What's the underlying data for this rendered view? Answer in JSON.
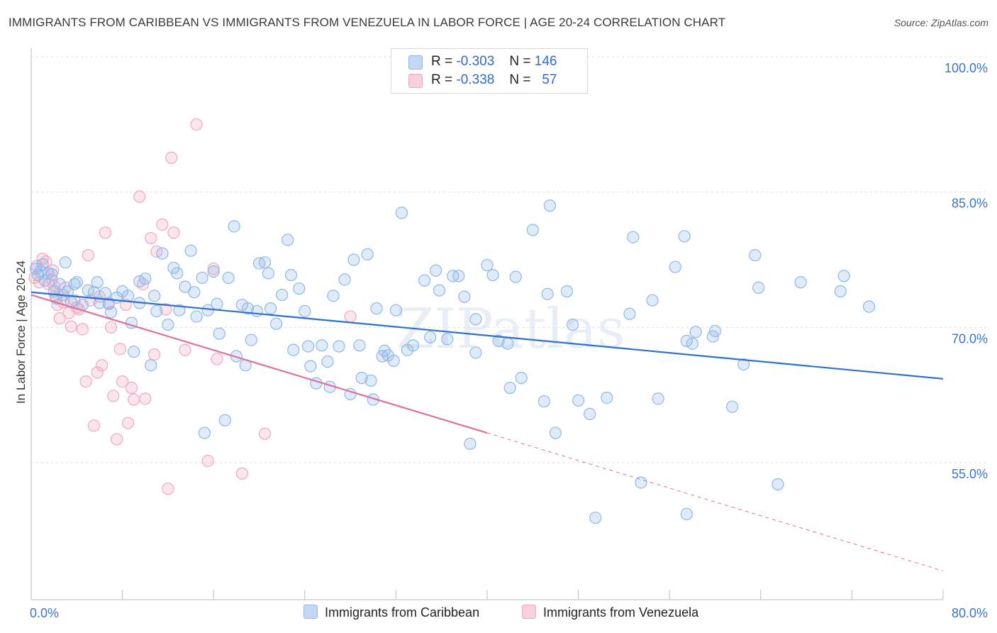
{
  "title": "IMMIGRANTS FROM CARIBBEAN VS IMMIGRANTS FROM VENEZUELA IN LABOR FORCE | AGE 20-24 CORRELATION CHART",
  "source": "Source: ZipAtlas.com",
  "watermark": "ZIPatlas",
  "legend": {
    "r_label": "R =",
    "n_label": "N =",
    "rows": [
      {
        "r": "-0.303",
        "n": "146"
      },
      {
        "r": "-0.338",
        "n": "57"
      }
    ]
  },
  "chart_data": {
    "type": "scatter",
    "title": "IMMIGRANTS FROM CARIBBEAN VS IMMIGRANTS FROM VENEZUELA IN LABOR FORCE | AGE 20-24 CORRELATION CHART",
    "xlabel": "",
    "ylabel": "In Labor Force | Age 20-24",
    "xlim": [
      0,
      80
    ],
    "ylim": [
      41.5,
      102
    ],
    "x_tick_labels": [
      "0.0%",
      "80.0%"
    ],
    "y_ticks": [
      55,
      70,
      85,
      100
    ],
    "y_tick_labels": [
      "55.0%",
      "70.0%",
      "85.0%",
      "100.0%"
    ],
    "grid": true,
    "colors": {
      "caribbean": "#8fb8ea",
      "venezuela": "#f2a7c0",
      "caribbean_line": "#2f6fd0",
      "venezuela_line": "#e0709a"
    },
    "series": [
      {
        "name": "Immigrants from Caribbean",
        "r": -0.303,
        "n": 146,
        "trend": {
          "x0": 0,
          "y0": 73.9,
          "x1": 80,
          "y1": 64.3
        },
        "points": [
          [
            0.4,
            76.5
          ],
          [
            0.6,
            75.8
          ],
          [
            0.8,
            76.2
          ],
          [
            1.0,
            77.0
          ],
          [
            1.2,
            75.2
          ],
          [
            1.5,
            76.0
          ],
          [
            1.8,
            75.9
          ],
          [
            2.0,
            74.0
          ],
          [
            2.2,
            73.2
          ],
          [
            2.5,
            74.8
          ],
          [
            2.8,
            73.6
          ],
          [
            3.0,
            77.2
          ],
          [
            3.2,
            74.0
          ],
          [
            3.5,
            72.8
          ],
          [
            3.8,
            74.8
          ],
          [
            4.0,
            75.0
          ],
          [
            4.5,
            72.5
          ],
          [
            5.0,
            74.1
          ],
          [
            5.5,
            73.9
          ],
          [
            5.8,
            75.0
          ],
          [
            6.0,
            72.7
          ],
          [
            6.5,
            73.8
          ],
          [
            6.8,
            72.6
          ],
          [
            7.0,
            71.7
          ],
          [
            7.5,
            73.3
          ],
          [
            8.0,
            74.0
          ],
          [
            8.5,
            73.5
          ],
          [
            8.8,
            70.5
          ],
          [
            9.0,
            67.3
          ],
          [
            9.5,
            72.7
          ],
          [
            9.5,
            75.1
          ],
          [
            10.0,
            75.4
          ],
          [
            10.5,
            65.8
          ],
          [
            10.8,
            73.5
          ],
          [
            11.0,
            71.8
          ],
          [
            11.5,
            78.2
          ],
          [
            12.0,
            70.3
          ],
          [
            12.5,
            76.6
          ],
          [
            12.8,
            76.0
          ],
          [
            13.0,
            71.9
          ],
          [
            13.5,
            74.5
          ],
          [
            14.0,
            78.5
          ],
          [
            14.3,
            73.9
          ],
          [
            14.5,
            71.2
          ],
          [
            15.0,
            75.5
          ],
          [
            15.2,
            58.3
          ],
          [
            15.5,
            71.9
          ],
          [
            16.0,
            76.2
          ],
          [
            16.3,
            72.6
          ],
          [
            16.5,
            69.3
          ],
          [
            17.0,
            59.7
          ],
          [
            17.3,
            75.5
          ],
          [
            17.8,
            81.2
          ],
          [
            18.0,
            66.8
          ],
          [
            18.5,
            72.5
          ],
          [
            18.8,
            65.8
          ],
          [
            19.0,
            72.1
          ],
          [
            19.3,
            68.6
          ],
          [
            19.8,
            71.8
          ],
          [
            20.0,
            77.1
          ],
          [
            20.5,
            77.2
          ],
          [
            20.8,
            76.0
          ],
          [
            21.0,
            72.1
          ],
          [
            21.5,
            70.4
          ],
          [
            22.0,
            73.6
          ],
          [
            22.5,
            79.7
          ],
          [
            22.8,
            75.8
          ],
          [
            23.0,
            67.5
          ],
          [
            23.5,
            74.3
          ],
          [
            24.0,
            71.8
          ],
          [
            24.3,
            67.9
          ],
          [
            24.5,
            65.7
          ],
          [
            25.0,
            63.8
          ],
          [
            25.5,
            68.0
          ],
          [
            26.0,
            66.2
          ],
          [
            26.2,
            63.4
          ],
          [
            26.5,
            73.5
          ],
          [
            27.0,
            67.9
          ],
          [
            27.5,
            75.3
          ],
          [
            28.0,
            62.6
          ],
          [
            28.3,
            77.5
          ],
          [
            28.8,
            68.0
          ],
          [
            29.0,
            64.4
          ],
          [
            29.5,
            78.1
          ],
          [
            29.8,
            64.1
          ],
          [
            30.0,
            62.0
          ],
          [
            30.3,
            72.1
          ],
          [
            30.8,
            66.8
          ],
          [
            31.0,
            67.4
          ],
          [
            31.3,
            66.9
          ],
          [
            31.8,
            66.3
          ],
          [
            32.0,
            71.9
          ],
          [
            32.5,
            82.7
          ],
          [
            33.0,
            67.5
          ],
          [
            33.5,
            68.0
          ],
          [
            34.5,
            75.2
          ],
          [
            35.0,
            68.9
          ],
          [
            35.5,
            76.3
          ],
          [
            35.8,
            74.1
          ],
          [
            36.5,
            68.7
          ],
          [
            37.0,
            75.7
          ],
          [
            37.5,
            75.7
          ],
          [
            38.0,
            73.4
          ],
          [
            38.5,
            57.1
          ],
          [
            39.0,
            70.9
          ],
          [
            39.0,
            67.2
          ],
          [
            40.0,
            76.9
          ],
          [
            40.5,
            75.8
          ],
          [
            41.0,
            68.5
          ],
          [
            41.8,
            68.2
          ],
          [
            42.0,
            63.3
          ],
          [
            42.5,
            75.6
          ],
          [
            43.0,
            64.4
          ],
          [
            44.0,
            80.8
          ],
          [
            45.0,
            61.8
          ],
          [
            45.5,
            83.5
          ],
          [
            45.3,
            73.7
          ],
          [
            46.0,
            58.3
          ],
          [
            47.0,
            74.0
          ],
          [
            47.5,
            70.3
          ],
          [
            48.0,
            61.9
          ],
          [
            49.0,
            60.4
          ],
          [
            49.5,
            48.9
          ],
          [
            50.5,
            62.2
          ],
          [
            52.5,
            71.5
          ],
          [
            52.8,
            80.0
          ],
          [
            53.5,
            52.8
          ],
          [
            54.5,
            73.0
          ],
          [
            55.0,
            62.1
          ],
          [
            56.5,
            76.7
          ],
          [
            57.3,
            80.1
          ],
          [
            57.5,
            49.3
          ],
          [
            57.5,
            68.5
          ],
          [
            58.0,
            68.2
          ],
          [
            58.3,
            69.5
          ],
          [
            60.0,
            69.6
          ],
          [
            61.5,
            61.2
          ],
          [
            62.5,
            65.9
          ],
          [
            63.5,
            78.0
          ],
          [
            63.8,
            74.4
          ],
          [
            65.5,
            52.6
          ],
          [
            67.5,
            75.0
          ],
          [
            71.0,
            74.0
          ],
          [
            71.3,
            75.7
          ],
          [
            73.5,
            72.3
          ],
          [
            59.8,
            69.0
          ]
        ]
      },
      {
        "name": "Immigrants from Venezuela",
        "r": -0.338,
        "n": 57,
        "trend": {
          "x0": 0,
          "y0": 73.6,
          "x1": 40,
          "y1": 58.3
        },
        "dashed_extension": {
          "x0": 40,
          "y0": 58.3,
          "x1": 80,
          "y1": 43.0
        },
        "points": [
          [
            0.3,
            75.5
          ],
          [
            0.5,
            76.8
          ],
          [
            0.7,
            75.0
          ],
          [
            1.0,
            77.6
          ],
          [
            1.3,
            77.3
          ],
          [
            1.5,
            74.8
          ],
          [
            1.8,
            75.3
          ],
          [
            1.9,
            76.3
          ],
          [
            2.0,
            74.6
          ],
          [
            2.1,
            73.5
          ],
          [
            2.3,
            72.5
          ],
          [
            2.5,
            71.0
          ],
          [
            2.8,
            72.8
          ],
          [
            3.0,
            74.4
          ],
          [
            3.3,
            71.6
          ],
          [
            3.5,
            70.1
          ],
          [
            3.8,
            73.0
          ],
          [
            4.0,
            72.2
          ],
          [
            4.2,
            72.0
          ],
          [
            4.5,
            69.8
          ],
          [
            4.8,
            64.0
          ],
          [
            5.0,
            78.0
          ],
          [
            5.2,
            73.0
          ],
          [
            5.5,
            59.1
          ],
          [
            5.8,
            65.0
          ],
          [
            6.0,
            73.4
          ],
          [
            6.2,
            65.8
          ],
          [
            6.5,
            80.5
          ],
          [
            6.8,
            72.7
          ],
          [
            7.0,
            70.0
          ],
          [
            7.2,
            62.4
          ],
          [
            7.5,
            57.6
          ],
          [
            7.8,
            67.6
          ],
          [
            8.0,
            64.0
          ],
          [
            8.3,
            72.5
          ],
          [
            8.5,
            59.4
          ],
          [
            8.8,
            63.3
          ],
          [
            9.0,
            62.0
          ],
          [
            9.5,
            84.5
          ],
          [
            9.8,
            74.8
          ],
          [
            10.0,
            62.1
          ],
          [
            10.5,
            79.9
          ],
          [
            10.8,
            67.0
          ],
          [
            11.0,
            78.4
          ],
          [
            11.5,
            81.4
          ],
          [
            11.8,
            72.0
          ],
          [
            12.0,
            52.1
          ],
          [
            12.3,
            88.8
          ],
          [
            12.5,
            80.5
          ],
          [
            13.5,
            67.5
          ],
          [
            14.5,
            92.5
          ],
          [
            15.5,
            55.2
          ],
          [
            16.0,
            76.5
          ],
          [
            16.3,
            66.5
          ],
          [
            18.5,
            53.8
          ],
          [
            20.5,
            58.2
          ],
          [
            28.0,
            71.2
          ]
        ]
      }
    ]
  },
  "bottom_legend": [
    "Immigrants from Caribbean",
    "Immigrants from Venezuela"
  ]
}
